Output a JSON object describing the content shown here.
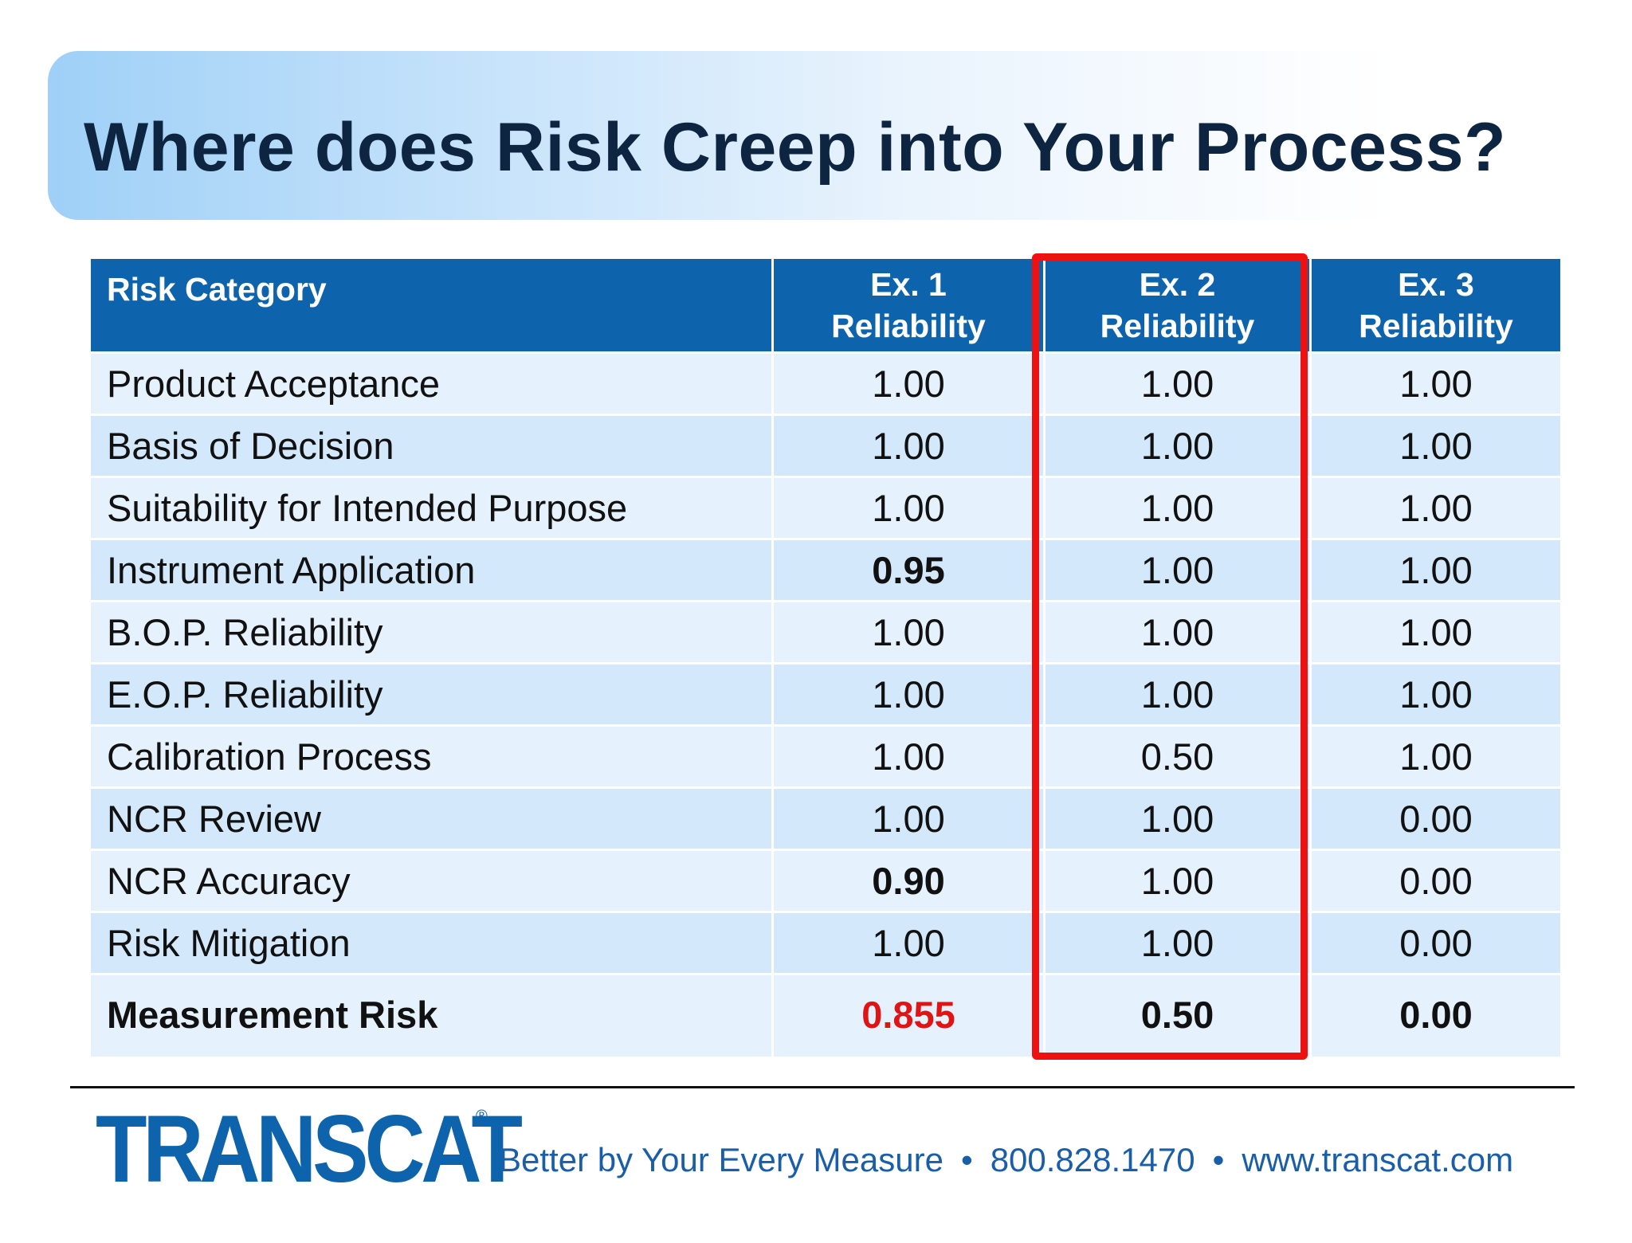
{
  "slide": {
    "title": "Where does Risk Creep into Your Process?"
  },
  "table": {
    "headers": {
      "category": "Risk Category",
      "ex1_line1": "Ex. 1",
      "ex1_line2": "Reliability",
      "ex2_line1": "Ex. 2",
      "ex2_line2": "Reliability",
      "ex3_line1": "Ex. 3",
      "ex3_line2": "Reliability"
    },
    "rows": [
      {
        "category": "Product Acceptance",
        "ex1": "1.00",
        "ex2": "1.00",
        "ex3": "1.00"
      },
      {
        "category": "Basis of Decision",
        "ex1": "1.00",
        "ex2": "1.00",
        "ex3": "1.00"
      },
      {
        "category": "Suitability for Intended Purpose",
        "ex1": "1.00",
        "ex2": "1.00",
        "ex3": "1.00"
      },
      {
        "category": "Instrument Application",
        "ex1": "0.95",
        "ex2": "1.00",
        "ex3": "1.00"
      },
      {
        "category": "B.O.P. Reliability",
        "ex1": "1.00",
        "ex2": "1.00",
        "ex3": "1.00"
      },
      {
        "category": "E.O.P. Reliability",
        "ex1": "1.00",
        "ex2": "1.00",
        "ex3": "1.00"
      },
      {
        "category": "Calibration Process",
        "ex1": "1.00",
        "ex2": "0.50",
        "ex3": "1.00"
      },
      {
        "category": "NCR Review",
        "ex1": "1.00",
        "ex2": "1.00",
        "ex3": "0.00"
      },
      {
        "category": "NCR Accuracy",
        "ex1": "0.90",
        "ex2": "1.00",
        "ex3": "0.00"
      },
      {
        "category": "Risk Mitigation",
        "ex1": "1.00",
        "ex2": "1.00",
        "ex3": "0.00"
      }
    ],
    "total": {
      "category": "Measurement Risk",
      "ex1": "0.855",
      "ex2": "0.50",
      "ex3": "0.00"
    },
    "highlighted_column": "Ex. 2"
  },
  "footer": {
    "logo": "TRANSCAT",
    "registered_mark": "®",
    "tagline": "Better by Your Every Measure",
    "separator": "•",
    "phone": "800.828.1470",
    "website": "www.transcat.com"
  },
  "colors": {
    "header_blue": "#0e63ad",
    "row_light": "#e5f2fd",
    "row_dark": "#d3e8fb",
    "highlight_red": "#ee1111",
    "total_red_value": "#e01414",
    "title_text": "#0d2540"
  }
}
